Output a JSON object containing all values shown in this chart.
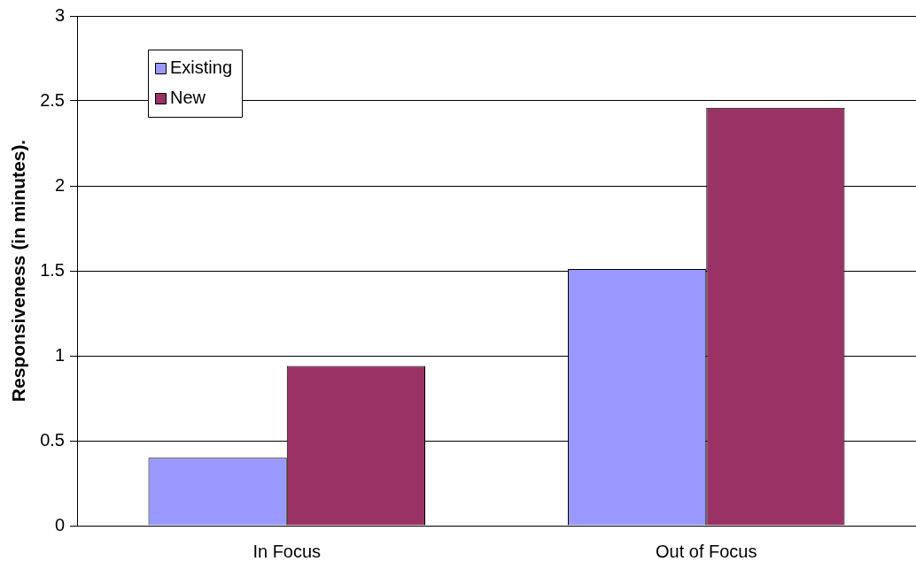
{
  "chart_data": {
    "type": "bar",
    "ylabel": "Responsiveness (in minutes).",
    "categories": [
      "In Focus",
      "Out of Focus"
    ],
    "series": [
      {
        "name": "Existing",
        "color": "#9999ff",
        "values": [
          0.4,
          1.51
        ]
      },
      {
        "name": "New",
        "color": "#993366",
        "values": [
          0.94,
          2.46
        ]
      }
    ],
    "ylim": [
      0,
      3
    ],
    "yticks": [
      0,
      0.5,
      1,
      1.5,
      2,
      2.5,
      3
    ],
    "grid": "y",
    "legend": "top left"
  }
}
